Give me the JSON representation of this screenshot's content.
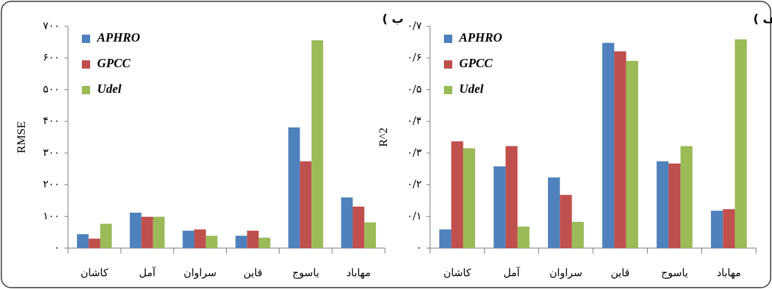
{
  "chart_data": [
    {
      "type": "bar",
      "title": "ب )",
      "ylabel": "RMSE",
      "categories": [
        "کاشان",
        "آمل",
        "سراوان",
        "قاین",
        "یاسوج",
        "مهاباد"
      ],
      "series": [
        {
          "name": "APHRO",
          "color": "#4f81bd",
          "values": [
            44,
            112,
            55,
            39,
            381,
            160
          ]
        },
        {
          "name": "GPCC",
          "color": "#c0504d",
          "values": [
            30,
            99,
            59,
            55,
            274,
            131
          ]
        },
        {
          "name": "Udel",
          "color": "#9bbb59",
          "values": [
            77,
            99,
            39,
            33,
            656,
            81
          ]
        }
      ],
      "ylim": [
        0,
        700
      ],
      "yticks": [
        {
          "value": 0,
          "label": "۰"
        },
        {
          "value": 100,
          "label": "۱۰۰"
        },
        {
          "value": 200,
          "label": "۲۰۰"
        },
        {
          "value": 300,
          "label": "۳۰۰"
        },
        {
          "value": 400,
          "label": "۴۰۰"
        },
        {
          "value": 500,
          "label": "۵۰۰"
        },
        {
          "value": 600,
          "label": "۶۰۰"
        },
        {
          "value": 700,
          "label": "۷۰۰"
        }
      ],
      "legend": "upper left"
    },
    {
      "type": "bar",
      "title": "الف )",
      "ylabel": "R^2",
      "categories": [
        "کاشان",
        "آمل",
        "سراوان",
        "قاین",
        "یاسوج",
        "مهاباد"
      ],
      "series": [
        {
          "name": "APHRO",
          "color": "#4f81bd",
          "values": [
            0.059,
            0.258,
            0.223,
            0.648,
            0.274,
            0.118
          ]
        },
        {
          "name": "GPCC",
          "color": "#c0504d",
          "values": [
            0.337,
            0.322,
            0.168,
            0.621,
            0.267,
            0.123
          ]
        },
        {
          "name": "Udel",
          "color": "#9bbb59",
          "values": [
            0.315,
            0.068,
            0.083,
            0.591,
            0.322,
            0.659
          ]
        }
      ],
      "ylim": [
        0,
        0.7
      ],
      "yticks": [
        {
          "value": 0,
          "label": "۰"
        },
        {
          "value": 0.1,
          "label": "۰/۱"
        },
        {
          "value": 0.2,
          "label": "۰/۲"
        },
        {
          "value": 0.3,
          "label": "۰/۳"
        },
        {
          "value": 0.4,
          "label": "۰/۴"
        },
        {
          "value": 0.5,
          "label": "۰/۵"
        },
        {
          "value": 0.6,
          "label": "۰/۶"
        },
        {
          "value": 0.7,
          "label": "۰/۷"
        }
      ],
      "legend": "upper left"
    }
  ]
}
